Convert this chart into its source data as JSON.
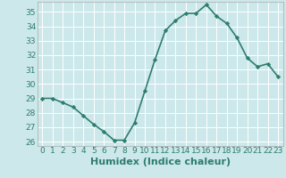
{
  "x": [
    0,
    1,
    2,
    3,
    4,
    5,
    6,
    7,
    8,
    9,
    10,
    11,
    12,
    13,
    14,
    15,
    16,
    17,
    18,
    19,
    20,
    21,
    22,
    23
  ],
  "y": [
    29.0,
    29.0,
    28.7,
    28.4,
    27.8,
    27.2,
    26.7,
    26.1,
    26.1,
    27.3,
    29.5,
    31.7,
    33.7,
    34.4,
    34.9,
    34.9,
    35.5,
    34.7,
    34.2,
    33.2,
    31.8,
    31.2,
    31.4,
    30.5
  ],
  "line_color": "#2e7d6e",
  "marker": "D",
  "marker_size": 2.2,
  "bg_color": "#cce8ea",
  "grid_color": "#ffffff",
  "xlabel": "Humidex (Indice chaleur)",
  "ylim": [
    25.7,
    35.7
  ],
  "xlim": [
    -0.5,
    23.5
  ],
  "yticks": [
    26,
    27,
    28,
    29,
    30,
    31,
    32,
    33,
    34,
    35
  ],
  "xticks": [
    0,
    1,
    2,
    3,
    4,
    5,
    6,
    7,
    8,
    9,
    10,
    11,
    12,
    13,
    14,
    15,
    16,
    17,
    18,
    19,
    20,
    21,
    22,
    23
  ],
  "tick_label_fontsize": 6.5,
  "xlabel_fontsize": 8,
  "line_width": 1.2
}
